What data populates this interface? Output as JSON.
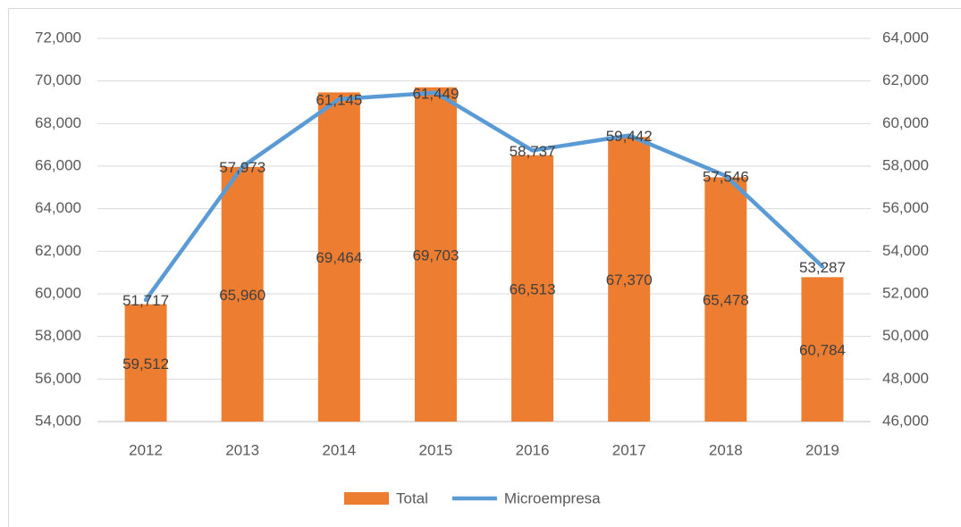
{
  "chart_data": {
    "type": "combo",
    "categories": [
      "2012",
      "2013",
      "2014",
      "2015",
      "2016",
      "2017",
      "2018",
      "2019"
    ],
    "series": [
      {
        "name": "Total",
        "type": "bar",
        "color": "#ed7d31",
        "axis": "y",
        "values": [
          59512,
          65960,
          69464,
          69703,
          66513,
          67370,
          65478,
          60784
        ],
        "value_labels": [
          "59,512",
          "65,960",
          "69,464",
          "69,703",
          "66,513",
          "67,370",
          "65,478",
          "60,784"
        ]
      },
      {
        "name": "Microempresa",
        "type": "line",
        "color": "#5b9bd5",
        "axis": "y2",
        "values": [
          51717,
          57973,
          61145,
          61449,
          58737,
          59442,
          57546,
          53287
        ],
        "value_labels": [
          "51,717",
          "57,973",
          "61,145",
          "61,449",
          "58,737",
          "59,442",
          "57,546",
          "53,287"
        ]
      }
    ],
    "ylim": [
      54000,
      72000
    ],
    "yticks": [
      {
        "value": 54000,
        "label": "54,000"
      },
      {
        "value": 56000,
        "label": "56,000"
      },
      {
        "value": 58000,
        "label": "58,000"
      },
      {
        "value": 60000,
        "label": "60,000"
      },
      {
        "value": 62000,
        "label": "62,000"
      },
      {
        "value": 64000,
        "label": "64,000"
      },
      {
        "value": 66000,
        "label": "66,000"
      },
      {
        "value": 68000,
        "label": "68,000"
      },
      {
        "value": 70000,
        "label": "70,000"
      },
      {
        "value": 72000,
        "label": "72,000"
      }
    ],
    "y2lim": [
      46000,
      64000
    ],
    "y2ticks": [
      {
        "value": 46000,
        "label": "46,000"
      },
      {
        "value": 48000,
        "label": "48,000"
      },
      {
        "value": 50000,
        "label": "50,000"
      },
      {
        "value": 52000,
        "label": "52,000"
      },
      {
        "value": 54000,
        "label": "54,000"
      },
      {
        "value": 56000,
        "label": "56,000"
      },
      {
        "value": 58000,
        "label": "58,000"
      },
      {
        "value": 60000,
        "label": "60,000"
      },
      {
        "value": 62000,
        "label": "62,000"
      },
      {
        "value": 64000,
        "label": "64,000"
      }
    ],
    "grid": true,
    "legend": "bottom"
  }
}
